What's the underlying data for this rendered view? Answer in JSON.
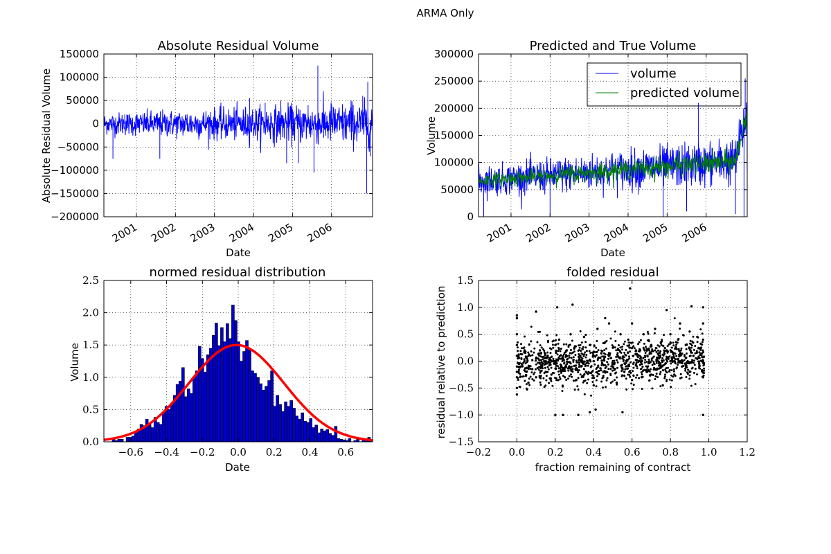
{
  "figure": {
    "suptitle": "ARMA Only"
  },
  "chart_data": [
    {
      "id": "abs_residual",
      "type": "line",
      "title": "Absolute Residual Volume",
      "xlabel": "Date",
      "ylabel": "Absolute Residual Volume",
      "xlim": [
        "2000-03-01",
        "2007-01-20"
      ],
      "ylim": [
        -200000,
        150000
      ],
      "x_tick_labels": [
        "2001",
        "2002",
        "2003",
        "2004",
        "2005",
        "2006"
      ],
      "y_tick_labels": [
        "150000",
        "100000",
        "50000",
        "0",
        "−50000",
        "−100000",
        "−150000",
        "−200000"
      ],
      "x_ticks": [
        2001,
        2002,
        2003,
        2004,
        2005,
        2006
      ],
      "y_ticks": [
        150000,
        100000,
        50000,
        0,
        -50000,
        -100000,
        -150000,
        -200000
      ],
      "grid": true,
      "series": [
        {
          "color": "#0000ff",
          "shape": [
            [
              2000.17,
              0
            ],
            [
              2000.3,
              -10000
            ],
            [
              2000.4,
              -75000
            ],
            [
              2000.55,
              15000
            ],
            [
              2000.7,
              20000
            ],
            [
              2001.0,
              5000
            ],
            [
              2001.3,
              -15000
            ],
            [
              2001.5,
              -10000
            ],
            [
              2001.6,
              -75000
            ],
            [
              2001.8,
              15000
            ],
            [
              2002.0,
              10000
            ],
            [
              2002.2,
              -20000
            ],
            [
              2002.3,
              20000
            ],
            [
              2002.6,
              -15000
            ],
            [
              2002.9,
              25000
            ],
            [
              2003.2,
              -15000
            ],
            [
              2003.5,
              25000
            ],
            [
              2003.75,
              -25000
            ],
            [
              2003.9,
              55000
            ],
            [
              2004.1,
              -30000
            ],
            [
              2004.3,
              45000
            ],
            [
              2004.5,
              -25000
            ],
            [
              2004.7,
              50000
            ],
            [
              2004.85,
              -85000
            ],
            [
              2005.0,
              30000
            ],
            [
              2005.15,
              -85000
            ],
            [
              2005.4,
              40000
            ],
            [
              2005.55,
              -105000
            ],
            [
              2005.65,
              125000
            ],
            [
              2005.8,
              -30000
            ],
            [
              2006.0,
              40000
            ],
            [
              2006.3,
              -35000
            ],
            [
              2006.5,
              50000
            ],
            [
              2006.7,
              -20000
            ],
            [
              2006.8,
              60000
            ],
            [
              2006.9,
              -150000
            ],
            [
              2006.93,
              90000
            ],
            [
              2007.0,
              -70000
            ],
            [
              2007.05,
              0
            ]
          ]
        }
      ]
    },
    {
      "id": "predicted_true",
      "type": "line",
      "title": "Predicted and True Volume",
      "xlabel": "Date",
      "ylabel": "Volume",
      "xlim": [
        "2000-03-01",
        "2007-01-20"
      ],
      "ylim": [
        0,
        300000
      ],
      "x_tick_labels": [
        "2001",
        "2002",
        "2003",
        "2004",
        "2005",
        "2006"
      ],
      "y_tick_labels": [
        "300000",
        "250000",
        "200000",
        "150000",
        "100000",
        "50000",
        "0"
      ],
      "x_ticks": [
        2001,
        2002,
        2003,
        2004,
        2005,
        2006
      ],
      "y_ticks": [
        300000,
        250000,
        200000,
        150000,
        100000,
        50000,
        0
      ],
      "grid": true,
      "legend": {
        "position": "upper right",
        "entries": [
          "volume",
          "predicted volume"
        ]
      },
      "series": [
        {
          "name": "volume",
          "color": "#0000ff",
          "shape": [
            [
              2000.17,
              80000
            ],
            [
              2000.3,
              0
            ],
            [
              2000.5,
              65000
            ],
            [
              2001.0,
              75000
            ],
            [
              2001.5,
              70000
            ],
            [
              2002.0,
              0
            ],
            [
              2002.2,
              75000
            ],
            [
              2003.0,
              85000
            ],
            [
              2003.5,
              90000
            ],
            [
              2004.0,
              95000
            ],
            [
              2004.5,
              95000
            ],
            [
              2004.9,
              0
            ],
            [
              2005.2,
              100000
            ],
            [
              2005.5,
              10000
            ],
            [
              2005.8,
              210000
            ],
            [
              2006.0,
              100000
            ],
            [
              2006.5,
              110000
            ],
            [
              2006.75,
              5000
            ],
            [
              2006.9,
              170000
            ],
            [
              2006.97,
              0
            ],
            [
              2007.0,
              255000
            ],
            [
              2007.05,
              85000
            ]
          ]
        },
        {
          "name": "predicted volume",
          "color": "#008000",
          "shape": [
            [
              2000.17,
              70000
            ],
            [
              2001.0,
              72000
            ],
            [
              2002.0,
              75000
            ],
            [
              2003.0,
              85000
            ],
            [
              2004.0,
              92000
            ],
            [
              2005.0,
              98000
            ],
            [
              2006.0,
              102000
            ],
            [
              2006.5,
              105000
            ],
            [
              2006.8,
              110000
            ],
            [
              2006.95,
              180000
            ],
            [
              2007.05,
              190000
            ]
          ]
        }
      ]
    },
    {
      "id": "normed_residual",
      "type": "bar",
      "title": "normed residual distribution",
      "xlabel": "Date",
      "ylabel": "Volume",
      "xlim": [
        -0.75,
        0.75
      ],
      "ylim": [
        0,
        2.5
      ],
      "x_tick_labels": [
        "−0.6",
        "−0.4",
        "−0.2",
        "0.0",
        "0.2",
        "0.4",
        "0.6"
      ],
      "y_tick_labels": [
        "2.5",
        "2.0",
        "1.5",
        "1.0",
        "0.5",
        "0.0"
      ],
      "x_ticks": [
        -0.6,
        -0.4,
        -0.2,
        0.0,
        0.2,
        0.4,
        0.6
      ],
      "y_ticks": [
        2.5,
        2.0,
        1.5,
        1.0,
        0.5,
        0.0
      ],
      "grid": true,
      "bins": {
        "start": -0.75,
        "width": 0.0155
      },
      "values": [
        0.0,
        0.0,
        0.0,
        0.05,
        0.02,
        0.04,
        0.04,
        0.0,
        0.07,
        0.07,
        0.09,
        0.14,
        0.2,
        0.27,
        0.25,
        0.35,
        0.27,
        0.22,
        0.38,
        0.3,
        0.27,
        0.45,
        0.55,
        0.5,
        0.6,
        0.72,
        0.89,
        0.94,
        1.15,
        0.7,
        0.82,
        0.75,
        0.99,
        1.1,
        1.48,
        1.29,
        1.08,
        1.35,
        1.45,
        1.65,
        1.84,
        1.49,
        1.77,
        1.55,
        1.83,
        1.6,
        2.12,
        1.88,
        1.55,
        1.25,
        1.4,
        1.57,
        1.42,
        1.1,
        1.06,
        1.0,
        0.9,
        0.8,
        0.86,
        0.95,
        1.1,
        0.55,
        0.72,
        0.58,
        0.47,
        0.62,
        0.55,
        0.64,
        0.52,
        0.4,
        0.35,
        0.45,
        0.32,
        0.3,
        0.36,
        0.22,
        0.26,
        0.14,
        0.2,
        0.17,
        0.19,
        0.13,
        0.1,
        0.24,
        0.05,
        0.04,
        0.03,
        0.02,
        0.05,
        0.0,
        0.02,
        0.04,
        0.0,
        0.05,
        0.03,
        0.07,
        0.04
      ],
      "fit_curve": {
        "type": "normal",
        "mean": -0.01,
        "sd": 0.265,
        "peak": 1.5,
        "color": "#ff0000"
      },
      "bar_color": "#0000cc"
    },
    {
      "id": "folded_residual",
      "type": "scatter",
      "title": "folded residual",
      "xlabel": "fraction remaining of contract",
      "ylabel": "residual relative to prediction",
      "xlim": [
        -0.2,
        1.2
      ],
      "ylim": [
        -1.5,
        1.5
      ],
      "x_tick_labels": [
        "−0.2",
        "0.0",
        "0.2",
        "0.4",
        "0.6",
        "0.8",
        "1.0",
        "1.2"
      ],
      "y_tick_labels": [
        "1.5",
        "1.0",
        "0.5",
        "0.0",
        "−0.5",
        "−1.0",
        "−1.5"
      ],
      "x_ticks": [
        -0.2,
        0.0,
        0.2,
        0.4,
        0.6,
        0.8,
        1.0,
        1.2
      ],
      "y_ticks": [
        1.5,
        1.0,
        0.5,
        0.0,
        -0.5,
        -1.0,
        -1.5
      ],
      "grid": true,
      "marker_color": "#000000",
      "x": [
        0.0,
        0.0,
        0.0,
        0.0,
        0.0,
        0.0,
        0.0,
        0.0,
        0.0,
        0.0,
        0.02,
        0.04,
        0.05,
        0.06,
        0.08,
        0.1,
        0.1,
        0.12,
        0.13,
        0.15,
        0.16,
        0.18,
        0.2,
        0.2,
        0.22,
        0.24,
        0.25,
        0.26,
        0.28,
        0.29,
        0.3,
        0.31,
        0.33,
        0.35,
        0.36,
        0.38,
        0.4,
        0.4,
        0.42,
        0.44,
        0.45,
        0.46,
        0.48,
        0.5,
        0.5,
        0.52,
        0.54,
        0.55,
        0.56,
        0.58,
        0.6,
        0.6,
        0.62,
        0.64,
        0.65,
        0.66,
        0.68,
        0.7,
        0.7,
        0.72,
        0.74,
        0.75,
        0.76,
        0.78,
        0.8,
        0.8,
        0.82,
        0.84,
        0.85,
        0.86,
        0.88,
        0.9,
        0.9,
        0.92,
        0.94,
        0.95,
        0.96,
        0.97,
        0.97,
        0.97,
        0.97,
        0.97,
        0.2,
        0.24,
        0.32,
        0.38,
        0.41,
        0.55,
        0.59,
        0.1,
        0.21,
        0.29,
        0.46,
        0.78,
        0.91,
        0.97
      ],
      "y": [
        0.85,
        0.8,
        0.5,
        0.3,
        0.1,
        -0.1,
        -0.2,
        -0.3,
        -0.5,
        -0.62,
        -0.1,
        0.2,
        -0.2,
        -0.4,
        -0.15,
        0.05,
        -0.3,
        0.2,
        -0.1,
        -0.2,
        0.1,
        -0.25,
        0.3,
        -0.05,
        0.4,
        0.05,
        -0.3,
        0.2,
        0.5,
        -0.15,
        0.25,
        -0.35,
        0.1,
        0.45,
        -0.2,
        0.3,
        0.0,
        -0.45,
        0.6,
        0.15,
        -0.3,
        0.35,
        0.7,
        -0.1,
        0.25,
        -0.4,
        0.5,
        0.05,
        -0.2,
        0.4,
        0.7,
        -0.35,
        0.2,
        0.0,
        -0.3,
        0.5,
        0.1,
        0.3,
        -0.25,
        0.6,
        0.05,
        0.35,
        -0.45,
        0.2,
        0.5,
        0.0,
        -0.25,
        0.4,
        0.7,
        -0.1,
        0.3,
        0.55,
        -0.2,
        0.1,
        0.45,
        -0.05,
        0.25,
        1.0,
        0.7,
        0.4,
        -0.3,
        0.0,
        -1.0,
        -1.0,
        -1.0,
        -0.95,
        -0.9,
        -0.95,
        1.35,
        0.92,
        1.0,
        1.05,
        0.8,
        0.95,
        1.02,
        -1.0
      ]
    }
  ]
}
